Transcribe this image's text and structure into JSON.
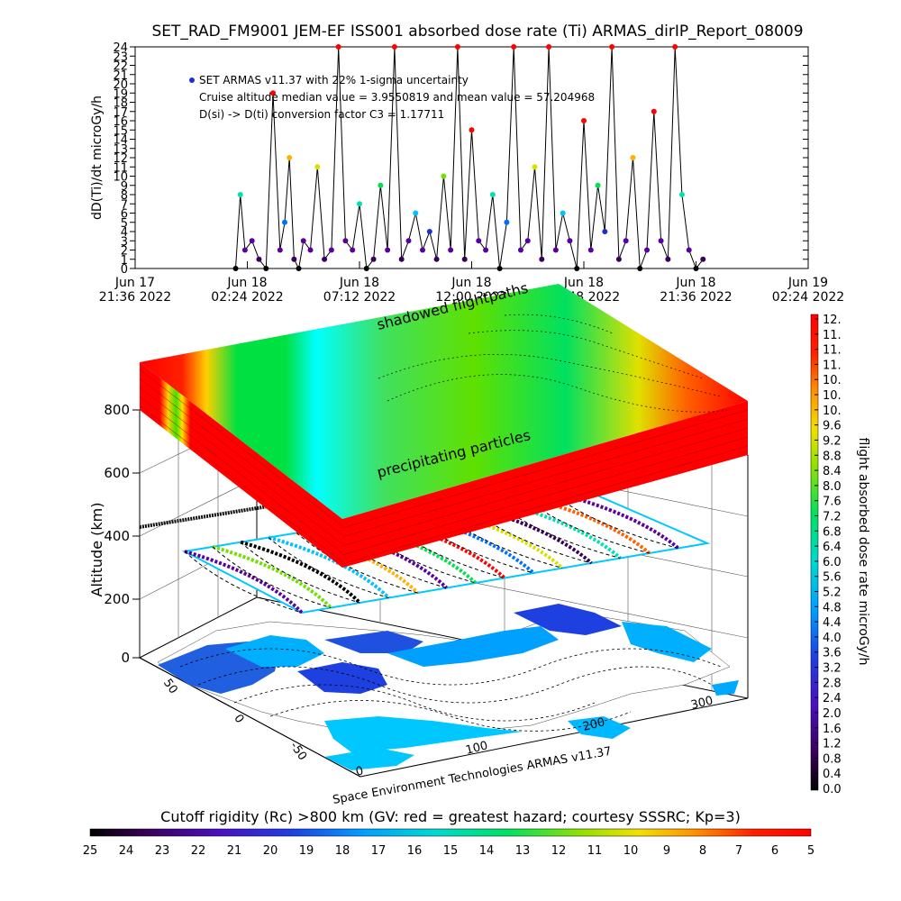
{
  "chart_data": [
    {
      "type": "line",
      "title": "SET_RAD_FM9001  JEM-EF ISS001 absorbed dose rate (Ti) ARMAS_dirIP_Report_08009",
      "ylabel": "dD(Ti)/dt microGy/h",
      "ylim": [
        0,
        24
      ],
      "yticks": [
        0,
        1,
        2,
        3,
        4,
        5,
        6,
        7,
        8,
        9,
        10,
        11,
        12,
        13,
        14,
        15,
        16,
        17,
        18,
        19,
        20,
        21,
        22,
        23,
        24
      ],
      "xticks": [
        {
          "l1": "Jun 17",
          "l2": "21:36 2022"
        },
        {
          "l1": "Jun 18",
          "l2": "02:24 2022"
        },
        {
          "l1": "Jun 18",
          "l2": "07:12 2022"
        },
        {
          "l1": "Jun 18",
          "l2": "12:00 2022"
        },
        {
          "l1": "Jun 18",
          "l2": "16:48 2022"
        },
        {
          "l1": "Jun 18",
          "l2": "21:36 2022"
        },
        {
          "l1": "Jun 19",
          "l2": "02:24 2022"
        }
      ],
      "x_range_hours": [
        0,
        28.8
      ],
      "annotations": [
        "SET ARMAS v11.37 with 22% 1-sigma uncertainty",
        "Cruise altitude median value = 3.9550819 and mean value = 57.204968",
        "D(si) -> D(ti) conversion factor C3 = 1.17711"
      ],
      "series": [
        {
          "x": [
            4.3,
            4.5,
            4.7,
            5.0,
            5.3,
            5.6,
            5.9,
            6.2,
            6.4,
            6.6,
            6.8,
            7.0,
            7.2,
            7.5,
            7.8,
            8.1,
            8.4,
            8.7,
            9.0,
            9.3,
            9.6,
            9.9,
            10.2,
            10.5,
            10.8,
            11.1,
            11.4,
            11.7,
            12.0,
            12.3,
            12.6,
            12.9,
            13.2,
            13.5,
            13.8,
            14.1,
            14.4,
            14.7,
            15.0,
            15.3,
            15.6,
            15.9,
            16.2,
            16.5,
            16.8,
            17.1,
            17.4,
            17.7,
            18.0,
            18.3,
            18.6,
            18.9,
            19.2,
            19.5,
            19.8,
            20.1,
            20.4,
            20.7,
            21.0,
            21.3,
            21.6,
            21.9,
            22.2,
            22.5,
            22.8,
            23.1,
            23.4,
            23.7,
            24.0,
            24.3
          ],
          "y": [
            0,
            8,
            2,
            3,
            1,
            0,
            19,
            2,
            5,
            12,
            1,
            0,
            3,
            2,
            11,
            1,
            2,
            24,
            3,
            2,
            7,
            0,
            1,
            9,
            2,
            24,
            1,
            3,
            6,
            2,
            4,
            1,
            10,
            2,
            24,
            1,
            15,
            3,
            2,
            8,
            0,
            5,
            24,
            2,
            3,
            11,
            1,
            24,
            2,
            6,
            3,
            0,
            16,
            2,
            9,
            4,
            24,
            1,
            3,
            12,
            0,
            2,
            17,
            3,
            1,
            24,
            8,
            2,
            0,
            1
          ]
        }
      ]
    },
    {
      "type": "heatmap",
      "zlabel": "Altitude (km)",
      "zticks": [
        "0",
        "200",
        "400",
        "600",
        "800"
      ],
      "annotations": [
        "shadowed flightpaths",
        "precipitating particles",
        "Space Environment Technologies ARMAS v11.37"
      ],
      "lat_ticks": [
        "50",
        "0",
        "-50"
      ],
      "lon_ticks": [
        "0",
        "100",
        "200",
        "300"
      ]
    },
    {
      "type": "colorbar",
      "label": "flight absorbed dose rate microGy/h",
      "ticks": [
        "12.",
        "11.",
        "11.",
        "11.",
        "10.",
        "10.",
        "10.",
        "9.6",
        "9.2",
        "8.8",
        "8.4",
        "8.0",
        "7.6",
        "7.2",
        "6.8",
        "6.4",
        "6.0",
        "5.6",
        "5.2",
        "4.8",
        "4.4",
        "4.0",
        "3.6",
        "3.2",
        "2.8",
        "2.4",
        "2.0",
        "1.6",
        "1.2",
        "0.8",
        "0.4",
        "0.0"
      ]
    },
    {
      "type": "colorbar",
      "label": "Cutoff rigidity (Rc) >800 km (GV: red = greatest hazard; courtesy SSSRC; Kp=3)",
      "ticks": [
        "25",
        "24",
        "23",
        "22",
        "21",
        "20",
        "19",
        "18",
        "17",
        "16",
        "15",
        "14",
        "13",
        "12",
        "11",
        "10",
        "9",
        "8",
        "7",
        "6",
        "5"
      ]
    }
  ],
  "colors": {
    "rainbow": [
      "#000000",
      "#3a005a",
      "#5a00a0",
      "#1e2fd0",
      "#0070ff",
      "#00c0ff",
      "#00e0b0",
      "#00e050",
      "#70e000",
      "#d8e000",
      "#ffb000",
      "#ff6000",
      "#ff0000"
    ]
  }
}
